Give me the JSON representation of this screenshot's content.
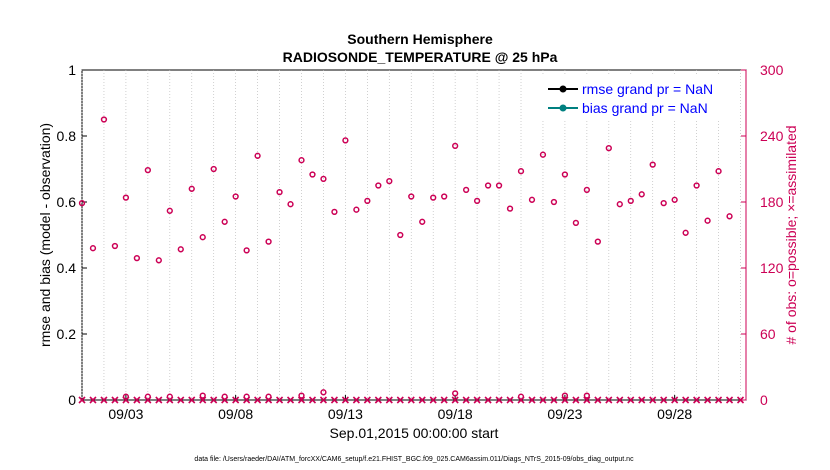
{
  "chart_data": {
    "type": "scatter",
    "title": "Southern Hemisphere",
    "subtitle": "RADIOSONDE_TEMPERATURE @ 25 hPa",
    "xlabel": "Sep.01,2015 00:00:00 start",
    "ylabel_left": "rmse and bias (model - observation)",
    "ylabel_right": "# of obs: o=possible; ×=assimilated",
    "x_ticks": [
      "09/03",
      "09/08",
      "09/13",
      "09/18",
      "09/23",
      "09/28"
    ],
    "x_tick_days": [
      3,
      8,
      13,
      18,
      23,
      28
    ],
    "xlim": [
      1.0,
      31.25
    ],
    "ylim_left": [
      0,
      1
    ],
    "left_ticks": [
      "0",
      "0.2",
      "0.4",
      "0.6",
      "0.8",
      "1"
    ],
    "ylim_right": [
      0,
      300
    ],
    "right_ticks": [
      "0",
      "60",
      "120",
      "180",
      "240",
      "300"
    ],
    "legend": [
      {
        "label": "rmse grand pr = NaN",
        "color": "#000000"
      },
      {
        "label": "bias grand pr = NaN",
        "color": "#008080"
      }
    ],
    "series": [
      {
        "name": "possible obs (o)",
        "axis": "right",
        "color": "#cc0055",
        "x": [
          1.0,
          1.5,
          2.0,
          2.5,
          3.0,
          3.5,
          4.0,
          4.5,
          5.0,
          5.5,
          6.0,
          6.5,
          7.0,
          7.5,
          8.0,
          8.5,
          9.0,
          9.5,
          10.0,
          10.5,
          11.0,
          11.5,
          12.0,
          12.5,
          13.0,
          13.5,
          14.0,
          14.5,
          15.0,
          15.5,
          16.0,
          16.5,
          17.0,
          17.5,
          18.0,
          18.5,
          19.0,
          19.5,
          20.0,
          20.5,
          21.0,
          21.5,
          22.0,
          22.5,
          23.0,
          23.5,
          24.0,
          24.5,
          25.0,
          25.5,
          26.0,
          26.5,
          27.0,
          27.5,
          28.0,
          28.5,
          29.0,
          29.5,
          30.0,
          30.5
        ],
        "y": [
          179,
          138,
          255,
          140,
          184,
          129,
          209,
          127,
          172,
          137,
          192,
          148,
          210,
          162,
          185,
          136,
          222,
          144,
          189,
          178,
          218,
          205,
          201,
          171,
          236,
          173,
          181,
          195,
          199,
          150,
          185,
          162,
          184,
          185,
          231,
          191,
          181,
          195,
          195,
          174,
          208,
          182,
          223,
          180,
          205,
          161,
          191,
          144,
          229,
          178,
          181,
          187,
          214,
          179,
          182,
          152,
          195,
          163,
          208,
          167
        ]
      },
      {
        "name": "assimilated obs (x)",
        "axis": "right",
        "color": "#cc0055",
        "x": [
          1.0,
          1.5,
          2.0,
          2.5,
          3.0,
          3.5,
          4.0,
          4.5,
          5.0,
          5.5,
          6.0,
          6.5,
          7.0,
          7.5,
          8.0,
          8.5,
          9.0,
          9.5,
          10.0,
          10.5,
          11.0,
          11.5,
          12.0,
          12.5,
          13.0,
          13.5,
          14.0,
          14.5,
          15.0,
          15.5,
          16.0,
          16.5,
          17.0,
          17.5,
          18.0,
          18.5,
          19.0,
          19.5,
          20.0,
          20.5,
          21.0,
          21.5,
          22.0,
          22.5,
          23.0,
          23.5,
          24.0,
          24.5,
          25.0,
          25.5,
          26.0,
          26.5,
          27.0,
          27.5,
          28.0,
          28.5,
          29.0,
          29.5,
          30.0,
          30.5,
          31.0
        ],
        "y": [
          0,
          0,
          0,
          0,
          0,
          0,
          0,
          0,
          0,
          0,
          0,
          0,
          0,
          0,
          0,
          0,
          0,
          0,
          0,
          0,
          0,
          0,
          0,
          0,
          0,
          0,
          0,
          0,
          0,
          0,
          0,
          0,
          0,
          0,
          0,
          0,
          0,
          0,
          0,
          0,
          0,
          0,
          0,
          0,
          0,
          0,
          0,
          0,
          0,
          0,
          0,
          0,
          0,
          0,
          0,
          0,
          0,
          0,
          0,
          0,
          0
        ]
      },
      {
        "name": "possible obs near zero (o)",
        "axis": "right",
        "color": "#cc0055",
        "x": [
          3.0,
          4.0,
          5.0,
          6.5,
          7.5,
          8.5,
          9.5,
          11.0,
          12.0,
          18.0,
          21.0,
          23.0,
          24.0
        ],
        "y": [
          3,
          3,
          3,
          4,
          3,
          3,
          3,
          4,
          7,
          6,
          3,
          4,
          4
        ]
      }
    ],
    "footer": "data file: /Users/raeder/DAI/ATM_forcXX/CAM6_setup/f.e21.FHIST_BGC.f09_025.CAM6assim.011/Diags_NTrS_2015-09/obs_diag_output.nc"
  }
}
